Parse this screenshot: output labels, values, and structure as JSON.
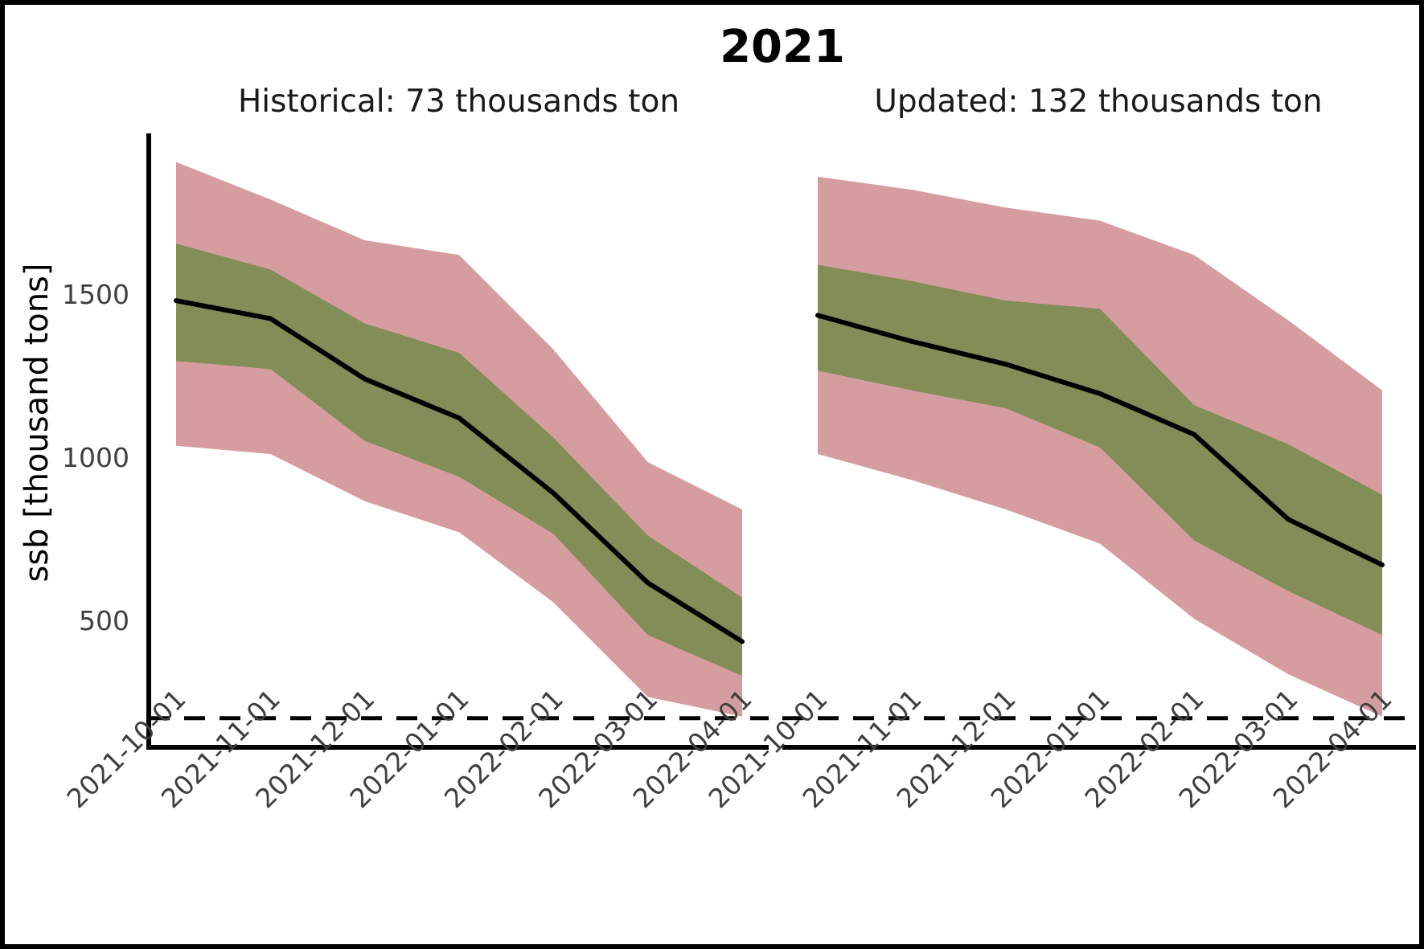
{
  "figure": {
    "title": "2021",
    "y_axis_label": "ssb [thousand tons]"
  },
  "colors": {
    "outer_band": "#d69da1",
    "inner_band": "#828d58",
    "median_line": "#000000",
    "reference_line": "#000000",
    "tick_label": "#3f3f3f",
    "spine": "#000000"
  },
  "chart_data": [
    {
      "type": "area",
      "panel": "left",
      "title": "Historical: 73 thousands ton",
      "x": [
        "2021-10-01",
        "2021-11-01",
        "2021-12-01",
        "2022-01-01",
        "2022-02-01",
        "2022-03-01",
        "2022-04-01"
      ],
      "series": [
        {
          "name": "outer_band_upper",
          "values": [
            1905,
            1790,
            1665,
            1620,
            1330,
            985,
            840
          ]
        },
        {
          "name": "outer_band_lower",
          "values": [
            1035,
            1010,
            865,
            770,
            555,
            265,
            205
          ]
        },
        {
          "name": "inner_band_upper",
          "values": [
            1655,
            1575,
            1410,
            1320,
            1060,
            760,
            570
          ]
        },
        {
          "name": "inner_band_lower",
          "values": [
            1295,
            1270,
            1050,
            940,
            765,
            455,
            330
          ]
        },
        {
          "name": "median",
          "values": [
            1480,
            1425,
            1240,
            1120,
            890,
            615,
            435
          ]
        }
      ],
      "reference_line_y": 200,
      "ylabel": "ssb [thousand tons]",
      "yticks": [
        500,
        1000,
        1500
      ],
      "ylim": [
        110,
        1990
      ],
      "grid": false,
      "legend": "none"
    },
    {
      "type": "area",
      "panel": "right",
      "title": "Updated: 132 thousands ton",
      "x": [
        "2021-10-01",
        "2021-11-01",
        "2021-12-01",
        "2022-01-01",
        "2022-02-01",
        "2022-03-01",
        "2022-04-01"
      ],
      "series": [
        {
          "name": "outer_band_upper",
          "values": [
            1860,
            1820,
            1765,
            1725,
            1620,
            1420,
            1205
          ]
        },
        {
          "name": "outer_band_lower",
          "values": [
            1010,
            930,
            840,
            735,
            505,
            335,
            205
          ]
        },
        {
          "name": "inner_band_upper",
          "values": [
            1590,
            1540,
            1480,
            1455,
            1160,
            1040,
            885
          ]
        },
        {
          "name": "inner_band_lower",
          "values": [
            1265,
            1205,
            1150,
            1030,
            745,
            590,
            455
          ]
        },
        {
          "name": "median",
          "values": [
            1435,
            1355,
            1285,
            1195,
            1070,
            810,
            670
          ]
        }
      ],
      "reference_line_y": 200,
      "yticks": [],
      "ylim": [
        110,
        1990
      ],
      "grid": false,
      "legend": "none"
    }
  ]
}
